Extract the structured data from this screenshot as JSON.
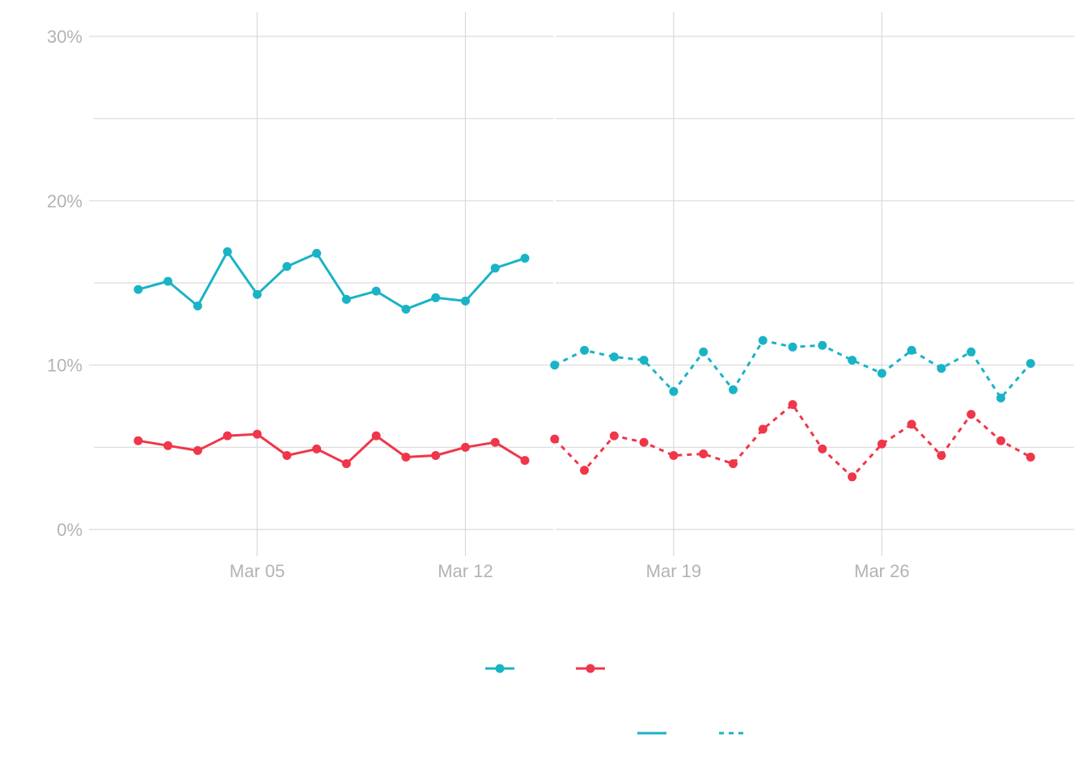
{
  "chart_data": {
    "type": "line",
    "x_type": "date",
    "x_ticks": [
      "Mar 05",
      "Mar 12",
      "Mar 19",
      "Mar 26"
    ],
    "y_ticks": [
      "0%",
      "10%",
      "20%",
      "30%"
    ],
    "ylim": [
      0,
      0.3
    ],
    "xlim": [
      "2024-02-28",
      "2024-04-01"
    ],
    "grid": true,
    "legend_position": "bottom",
    "colors": {
      "series_a": "#1ab3c6",
      "series_b": "#f0364a"
    },
    "series": [
      {
        "color": "#1ab3c6",
        "segments": [
          {
            "line": "solid",
            "x": [
              "2024-03-01",
              "2024-03-02",
              "2024-03-03",
              "2024-03-04",
              "2024-03-05",
              "2024-03-06",
              "2024-03-07",
              "2024-03-08",
              "2024-03-09",
              "2024-03-10",
              "2024-03-11",
              "2024-03-12",
              "2024-03-13",
              "2024-03-14"
            ],
            "y": [
              0.146,
              0.151,
              0.136,
              0.169,
              0.143,
              0.16,
              0.168,
              0.14,
              0.145,
              0.134,
              0.141,
              0.139,
              0.159,
              0.165
            ]
          },
          {
            "line": "dashed",
            "x": [
              "2024-03-15",
              "2024-03-16",
              "2024-03-17",
              "2024-03-18",
              "2024-03-19",
              "2024-03-20",
              "2024-03-21",
              "2024-03-22",
              "2024-03-23",
              "2024-03-24",
              "2024-03-25",
              "2024-03-26",
              "2024-03-27",
              "2024-03-28",
              "2024-03-29",
              "2024-03-30",
              "2024-03-31"
            ],
            "y": [
              0.1,
              0.109,
              0.105,
              0.103,
              0.084,
              0.108,
              0.085,
              0.115,
              0.111,
              0.112,
              0.103,
              0.095,
              0.109,
              0.098,
              0.108,
              0.08,
              0.101
            ]
          }
        ]
      },
      {
        "color": "#f0364a",
        "segments": [
          {
            "line": "solid",
            "x": [
              "2024-03-01",
              "2024-03-02",
              "2024-03-03",
              "2024-03-04",
              "2024-03-05",
              "2024-03-06",
              "2024-03-07",
              "2024-03-08",
              "2024-03-09",
              "2024-03-10",
              "2024-03-11",
              "2024-03-12",
              "2024-03-13",
              "2024-03-14"
            ],
            "y": [
              0.054,
              0.051,
              0.048,
              0.057,
              0.058,
              0.045,
              0.049,
              0.04,
              0.057,
              0.044,
              0.045,
              0.05,
              0.053,
              0.042
            ]
          },
          {
            "line": "dashed",
            "x": [
              "2024-03-15",
              "2024-03-16",
              "2024-03-17",
              "2024-03-18",
              "2024-03-19",
              "2024-03-20",
              "2024-03-21",
              "2024-03-22",
              "2024-03-23",
              "2024-03-24",
              "2024-03-25",
              "2024-03-26",
              "2024-03-27",
              "2024-03-28",
              "2024-03-29",
              "2024-03-30",
              "2024-03-31"
            ],
            "y": [
              0.055,
              0.036,
              0.057,
              0.053,
              0.045,
              0.046,
              0.04,
              0.061,
              0.076,
              0.049,
              0.032,
              0.052,
              0.064,
              0.045,
              0.07,
              0.054,
              0.044
            ]
          }
        ]
      }
    ],
    "legend": {
      "color_keys": [
        "#1ab3c6",
        "#f0364a"
      ],
      "linetype_keys": [
        "solid",
        "dashed"
      ]
    }
  }
}
